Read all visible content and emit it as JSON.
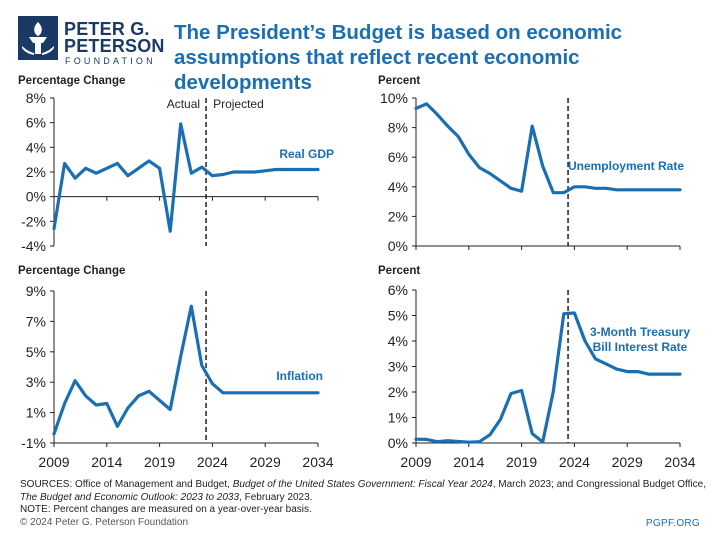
{
  "logo": {
    "line1": "PETER G.",
    "line2": "PETERSON",
    "line3": "FOUNDATION"
  },
  "title": "The President’s Budget is based on economic assumptions that reflect recent economic developments",
  "colors": {
    "line": "#1a6fb3",
    "title": "#1a6fb3",
    "logo": "#1a3a66",
    "axis": "#231f20"
  },
  "chart_data": [
    {
      "id": "gdp",
      "type": "line",
      "ylabel": "Percentage Change",
      "series_label": "Real GDP",
      "ylim": [
        -4,
        8
      ],
      "yticks": [
        -4,
        -2,
        0,
        2,
        4,
        6,
        8
      ],
      "yfmt": "%",
      "xlim": [
        2009,
        2034
      ],
      "xticks": [
        2009,
        2014,
        2019,
        2024,
        2029,
        2034
      ],
      "show_x_labels": false,
      "divider": 2024,
      "annotations": {
        "actual": "Actual",
        "projected": "Projected"
      },
      "x": [
        2009,
        2010,
        2011,
        2012,
        2013,
        2014,
        2015,
        2016,
        2017,
        2018,
        2019,
        2020,
        2021,
        2022,
        2023,
        2024,
        2025,
        2026,
        2027,
        2028,
        2029,
        2030,
        2031,
        2032,
        2033,
        2034
      ],
      "y": [
        -2.6,
        2.7,
        1.5,
        2.3,
        1.9,
        2.3,
        2.7,
        1.7,
        2.3,
        2.9,
        2.3,
        -2.8,
        5.9,
        1.9,
        2.4,
        1.7,
        1.8,
        2.0,
        2.0,
        2.0,
        2.1,
        2.2,
        2.2,
        2.2,
        2.2,
        2.2
      ]
    },
    {
      "id": "unemp",
      "type": "line",
      "ylabel": "Percent",
      "series_label": "Unemployment Rate",
      "ylim": [
        0,
        10
      ],
      "yticks": [
        0,
        2,
        4,
        6,
        8,
        10
      ],
      "yfmt": "%",
      "xlim": [
        2009,
        2034
      ],
      "xticks": [
        2009,
        2014,
        2019,
        2024,
        2029,
        2034
      ],
      "show_x_labels": false,
      "divider": 2024,
      "x": [
        2009,
        2010,
        2011,
        2012,
        2013,
        2014,
        2015,
        2016,
        2017,
        2018,
        2019,
        2020,
        2021,
        2022,
        2023,
        2024,
        2025,
        2026,
        2027,
        2028,
        2029,
        2030,
        2031,
        2032,
        2033,
        2034
      ],
      "y": [
        9.3,
        9.6,
        8.9,
        8.1,
        7.4,
        6.2,
        5.3,
        4.9,
        4.4,
        3.9,
        3.7,
        8.1,
        5.4,
        3.6,
        3.6,
        4.0,
        4.0,
        3.9,
        3.9,
        3.8,
        3.8,
        3.8,
        3.8,
        3.8,
        3.8,
        3.8
      ]
    },
    {
      "id": "infl",
      "type": "line",
      "ylabel": "Percentage Change",
      "series_label": "Inflation",
      "ylim": [
        -1,
        9
      ],
      "yticks": [
        -1,
        1,
        3,
        5,
        7,
        9
      ],
      "yfmt": "%",
      "xlim": [
        2009,
        2034
      ],
      "xticks": [
        2009,
        2014,
        2019,
        2024,
        2029,
        2034
      ],
      "show_x_labels": true,
      "divider": 2024,
      "x": [
        2009,
        2010,
        2011,
        2012,
        2013,
        2014,
        2015,
        2016,
        2017,
        2018,
        2019,
        2020,
        2021,
        2022,
        2023,
        2024,
        2025,
        2026,
        2027,
        2028,
        2029,
        2030,
        2031,
        2032,
        2033,
        2034
      ],
      "y": [
        -0.4,
        1.6,
        3.1,
        2.1,
        1.5,
        1.6,
        0.1,
        1.3,
        2.1,
        2.4,
        1.8,
        1.2,
        4.7,
        8.0,
        4.1,
        2.9,
        2.3,
        2.3,
        2.3,
        2.3,
        2.3,
        2.3,
        2.3,
        2.3,
        2.3,
        2.3
      ]
    },
    {
      "id": "tbill",
      "type": "line",
      "ylabel": "Percent",
      "series_label": [
        "3-Month Treasury",
        "Bill Interest Rate"
      ],
      "ylim": [
        0,
        6
      ],
      "yticks": [
        0,
        1,
        2,
        3,
        4,
        5,
        6
      ],
      "yfmt": "%",
      "xlim": [
        2009,
        2034
      ],
      "xticks": [
        2009,
        2014,
        2019,
        2024,
        2029,
        2034
      ],
      "show_x_labels": true,
      "divider": 2024,
      "x": [
        2009,
        2010,
        2011,
        2012,
        2013,
        2014,
        2015,
        2016,
        2017,
        2018,
        2019,
        2020,
        2021,
        2022,
        2023,
        2024,
        2025,
        2026,
        2027,
        2028,
        2029,
        2030,
        2031,
        2032,
        2033,
        2034
      ],
      "y": [
        0.15,
        0.14,
        0.05,
        0.09,
        0.06,
        0.03,
        0.05,
        0.32,
        0.93,
        1.94,
        2.06,
        0.37,
        0.04,
        2.02,
        5.07,
        5.1,
        4.0,
        3.3,
        3.1,
        2.9,
        2.8,
        2.8,
        2.7,
        2.7,
        2.7,
        2.7
      ]
    }
  ],
  "footer": {
    "sources_prefix": "SOURCES: Office of Management and Budget, ",
    "sources_title1": "Budget of the United States Government: Fiscal Year 2024",
    "sources_mid": ", March 2023; and Congressional Budget Office, ",
    "sources_title2": "The Budget and Economic Outlook: 2023 to 2033",
    "sources_suffix": ", February 2023.",
    "note": "NOTE: Percent changes are measured on a year-over-year basis.",
    "copyright": "© 2024 Peter G. Peterson Foundation",
    "site": "PGPF.ORG"
  }
}
